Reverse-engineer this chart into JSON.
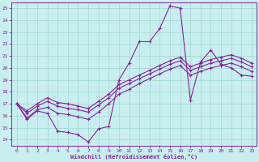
{
  "xlabel": "Windchill (Refroidissement éolien,°C)",
  "bg_color": "#c8eef0",
  "grid_color": "#a0d8d0",
  "line_color": "#882299",
  "spine_color": "#882299",
  "tick_color": "#882299",
  "xlim": [
    -0.5,
    23.5
  ],
  "ylim": [
    13.5,
    25.5
  ],
  "xticks": [
    0,
    1,
    2,
    3,
    4,
    5,
    6,
    7,
    8,
    9,
    10,
    11,
    12,
    13,
    14,
    15,
    16,
    17,
    18,
    19,
    20,
    21,
    22,
    23
  ],
  "yticks": [
    14,
    15,
    16,
    17,
    18,
    19,
    20,
    21,
    22,
    23,
    24,
    25
  ],
  "series": [
    [
      17.0,
      15.7,
      16.4,
      16.2,
      14.7,
      14.6,
      14.4,
      13.8,
      14.9,
      15.1,
      19.0,
      20.4,
      22.2,
      22.2,
      23.3,
      25.2,
      25.0,
      17.3,
      20.5,
      21.5,
      20.3,
      20.0,
      19.4,
      19.3
    ],
    [
      17.0,
      15.8,
      16.5,
      16.7,
      16.2,
      16.1,
      15.9,
      15.7,
      16.3,
      17.0,
      17.8,
      18.2,
      18.7,
      19.1,
      19.5,
      19.9,
      20.2,
      19.4,
      19.7,
      20.0,
      20.2,
      20.4,
      20.1,
      19.7
    ],
    [
      17.0,
      16.2,
      16.8,
      17.2,
      16.8,
      16.6,
      16.5,
      16.3,
      16.9,
      17.5,
      18.3,
      18.7,
      19.1,
      19.5,
      19.9,
      20.3,
      20.6,
      19.8,
      20.1,
      20.4,
      20.6,
      20.8,
      20.5,
      20.1
    ],
    [
      17.0,
      16.4,
      17.0,
      17.5,
      17.1,
      17.0,
      16.8,
      16.6,
      17.2,
      17.8,
      18.6,
      19.0,
      19.4,
      19.8,
      20.2,
      20.6,
      20.9,
      20.1,
      20.4,
      20.7,
      20.9,
      21.1,
      20.8,
      20.4
    ]
  ]
}
